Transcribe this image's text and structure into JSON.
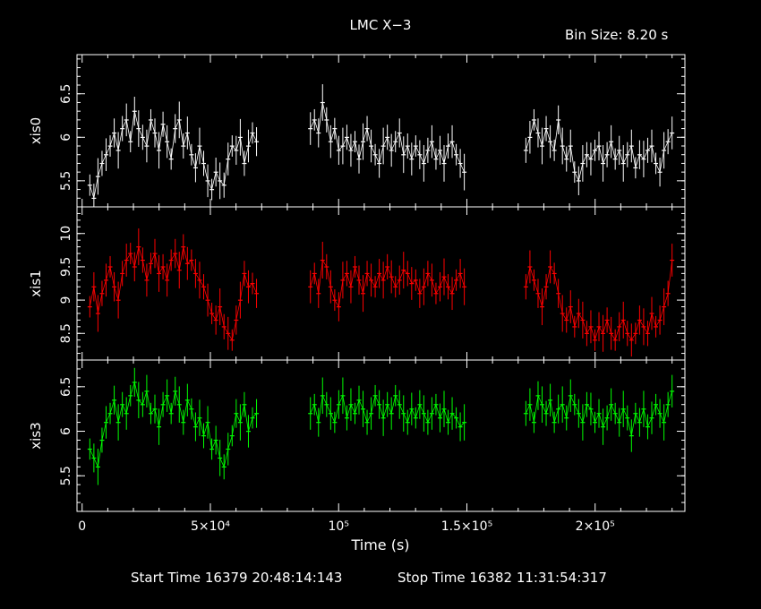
{
  "header": {
    "title": "LMC X−3",
    "bin_size": "Bin Size: 8.20 s"
  },
  "footer": {
    "start_time": "Start Time 16379 20:48:14:143",
    "stop_time": "Stop Time 16382 11:31:54:317"
  },
  "chart_data": {
    "type": "line",
    "title": "LMC X−3",
    "xlabel": "Time (s)",
    "xlim": [
      -2000,
      235000
    ],
    "x_ticks": [
      {
        "value": 0,
        "label": "0"
      },
      {
        "value": 50000,
        "label": "5×10⁴"
      },
      {
        "value": 100000,
        "label": "10⁵"
      },
      {
        "value": 150000,
        "label": "1.5×10⁵"
      },
      {
        "value": 200000,
        "label": "2×10⁵"
      }
    ],
    "grid": false,
    "panels": [
      {
        "name": "xis0",
        "ylabel": "xis0",
        "color": "#ffffff",
        "ylim": [
          5.2,
          6.95
        ],
        "y_ticks": [
          5.5,
          6,
          6.5
        ],
        "y_tick_labels": [
          "5.5",
          "6",
          "6.5"
        ],
        "segments": [
          {
            "x_start": 3000,
            "x_end": 68000,
            "values": [
              5.45,
              5.3,
              5.55,
              5.7,
              5.8,
              5.9,
              6.05,
              5.85,
              6.1,
              6.2,
              5.95,
              6.3,
              6.1,
              6.0,
              5.9,
              6.2,
              6.05,
              5.85,
              6.15,
              5.95,
              5.75,
              6.1,
              6.2,
              5.9,
              6.05,
              5.8,
              5.65,
              5.9,
              5.7,
              5.5,
              5.4,
              5.6,
              5.5,
              5.45,
              5.75,
              5.9,
              5.85,
              6.0,
              5.7,
              5.9,
              6.05,
              5.95
            ]
          },
          {
            "x_start": 89000,
            "x_end": 149000,
            "values": [
              6.1,
              6.2,
              6.05,
              6.4,
              6.2,
              5.95,
              6.1,
              5.85,
              5.9,
              6.0,
              5.85,
              5.95,
              5.75,
              5.95,
              6.1,
              5.9,
              5.8,
              5.7,
              5.9,
              6.0,
              5.85,
              5.95,
              6.05,
              5.8,
              5.9,
              5.75,
              5.9,
              5.8,
              5.7,
              5.85,
              5.95,
              5.75,
              5.85,
              5.7,
              5.9,
              5.95,
              5.8,
              5.7,
              5.6
            ]
          },
          {
            "x_start": 173000,
            "x_end": 230000,
            "values": [
              5.85,
              6.0,
              6.2,
              6.05,
              5.9,
              6.1,
              5.95,
              5.85,
              6.2,
              5.9,
              5.75,
              5.9,
              5.6,
              5.5,
              5.7,
              5.8,
              5.75,
              5.85,
              5.9,
              5.7,
              5.8,
              5.95,
              5.75,
              5.85,
              5.7,
              5.8,
              5.9,
              5.65,
              5.8,
              5.75,
              5.85,
              5.9,
              5.7,
              5.6,
              5.85,
              5.95,
              6.05
            ]
          }
        ]
      },
      {
        "name": "xis1",
        "ylabel": "xis1",
        "color": "#ff0000",
        "ylim": [
          8.1,
          10.4
        ],
        "y_ticks": [
          8.5,
          9,
          9.5,
          10
        ],
        "y_tick_labels": [
          "8.5",
          "9",
          "9.5",
          "10"
        ],
        "segments": [
          {
            "x_start": 3000,
            "x_end": 68000,
            "values": [
              8.9,
              9.2,
              8.8,
              9.1,
              9.3,
              9.5,
              9.2,
              9.0,
              9.4,
              9.6,
              9.7,
              9.5,
              9.8,
              9.6,
              9.3,
              9.55,
              9.7,
              9.4,
              9.5,
              9.3,
              9.6,
              9.7,
              9.45,
              9.8,
              9.55,
              9.6,
              9.4,
              9.3,
              9.2,
              9.0,
              8.8,
              8.7,
              8.9,
              8.6,
              8.5,
              8.4,
              8.7,
              9.0,
              9.4,
              9.2,
              9.25,
              9.1
            ]
          },
          {
            "x_start": 89000,
            "x_end": 149000,
            "values": [
              9.2,
              9.4,
              9.1,
              9.6,
              9.5,
              9.2,
              9.0,
              8.9,
              9.3,
              9.4,
              9.2,
              9.5,
              9.3,
              9.1,
              9.4,
              9.3,
              9.2,
              9.4,
              9.3,
              9.5,
              9.35,
              9.2,
              9.3,
              9.45,
              9.4,
              9.25,
              9.3,
              9.1,
              9.2,
              9.4,
              9.3,
              9.1,
              9.2,
              9.35,
              9.2,
              9.1,
              9.3,
              9.4,
              9.2
            ]
          },
          {
            "x_start": 173000,
            "x_end": 230000,
            "values": [
              9.2,
              9.5,
              9.3,
              9.1,
              8.9,
              9.2,
              9.5,
              9.4,
              9.1,
              8.8,
              8.7,
              8.9,
              8.6,
              8.8,
              8.7,
              8.5,
              8.6,
              8.4,
              8.6,
              8.5,
              8.7,
              8.5,
              8.4,
              8.6,
              8.7,
              8.5,
              8.4,
              8.5,
              8.7,
              8.6,
              8.5,
              8.8,
              8.6,
              8.7,
              8.9,
              9.1,
              9.6
            ]
          }
        ]
      },
      {
        "name": "xis3",
        "ylabel": "xis3",
        "color": "#00ff00",
        "ylim": [
          5.1,
          6.8
        ],
        "y_ticks": [
          5.5,
          6,
          6.5
        ],
        "y_tick_labels": [
          "5.5",
          "6",
          "6.5"
        ],
        "segments": [
          {
            "x_start": 3000,
            "x_end": 68000,
            "values": [
              5.8,
              5.7,
              5.6,
              5.9,
              6.1,
              6.2,
              6.35,
              6.1,
              6.3,
              6.2,
              6.4,
              6.55,
              6.35,
              6.3,
              6.45,
              6.2,
              6.25,
              6.05,
              6.3,
              6.4,
              6.2,
              6.45,
              6.3,
              6.1,
              6.35,
              6.25,
              6.05,
              6.15,
              5.95,
              6.1,
              5.8,
              5.9,
              5.7,
              5.6,
              5.8,
              5.95,
              6.2,
              6.1,
              6.3,
              6.0,
              6.15,
              6.2
            ]
          },
          {
            "x_start": 89000,
            "x_end": 149000,
            "values": [
              6.2,
              6.3,
              6.1,
              6.4,
              6.3,
              6.2,
              6.1,
              6.3,
              6.4,
              6.15,
              6.3,
              6.2,
              6.35,
              6.25,
              6.1,
              6.2,
              6.4,
              6.3,
              6.15,
              6.3,
              6.2,
              6.4,
              6.3,
              6.2,
              6.1,
              6.25,
              6.15,
              6.3,
              6.2,
              6.1,
              6.2,
              6.3,
              6.15,
              6.25,
              6.1,
              6.2,
              6.15,
              6.05,
              6.1
            ]
          },
          {
            "x_start": 173000,
            "x_end": 230000,
            "values": [
              6.2,
              6.3,
              6.1,
              6.4,
              6.3,
              6.2,
              6.35,
              6.1,
              6.25,
              6.3,
              6.15,
              6.4,
              6.3,
              6.2,
              6.1,
              6.3,
              6.25,
              6.1,
              6.2,
              6.05,
              6.15,
              6.3,
              6.2,
              6.1,
              6.25,
              6.15,
              5.95,
              6.2,
              6.1,
              6.25,
              6.05,
              6.15,
              6.3,
              6.2,
              6.1,
              6.3,
              6.45
            ]
          }
        ]
      }
    ]
  }
}
